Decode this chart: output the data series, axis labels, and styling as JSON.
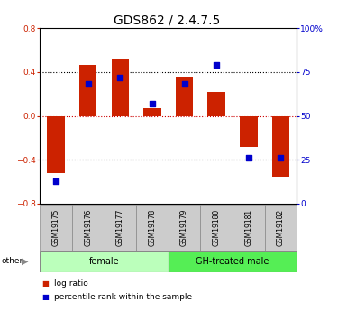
{
  "title": "GDS862 / 2.4.7.5",
  "samples": [
    "GSM19175",
    "GSM19176",
    "GSM19177",
    "GSM19178",
    "GSM19179",
    "GSM19180",
    "GSM19181",
    "GSM19182"
  ],
  "log_ratio": [
    -0.52,
    0.46,
    0.51,
    0.07,
    0.36,
    0.22,
    -0.28,
    -0.55
  ],
  "percentile_rank": [
    13,
    68,
    72,
    57,
    68,
    79,
    26,
    26
  ],
  "groups": [
    {
      "label": "female",
      "start": 0,
      "end": 3,
      "color": "#bbffbb"
    },
    {
      "label": "GH-treated male",
      "start": 4,
      "end": 7,
      "color": "#55ee55"
    }
  ],
  "ylim_left": [
    -0.8,
    0.8
  ],
  "ylim_right": [
    0,
    100
  ],
  "yticks_left": [
    -0.8,
    -0.4,
    0.0,
    0.4,
    0.8
  ],
  "yticks_right": [
    0,
    25,
    50,
    75,
    100
  ],
  "bar_color": "#cc2200",
  "dot_color": "#0000cc",
  "zero_line_color": "#cc0000",
  "dotted_color": "#000000",
  "background_color": "#ffffff",
  "plot_bg_color": "#ffffff",
  "title_fontsize": 10,
  "tick_fontsize": 6.5,
  "other_label": "other",
  "legend_items": [
    {
      "label": "log ratio",
      "color": "#cc2200"
    },
    {
      "label": "percentile rank within the sample",
      "color": "#0000cc"
    }
  ]
}
